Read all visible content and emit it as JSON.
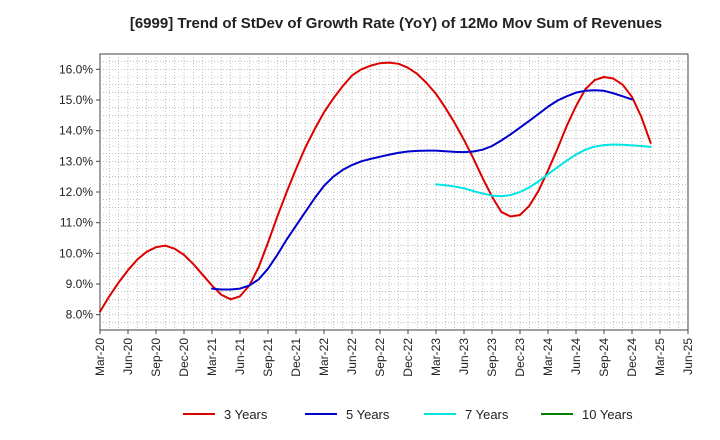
{
  "chart_data": {
    "type": "line",
    "title": "[6999]  Trend of StDev of Growth Rate (YoY) of 12Mo Mov Sum of Revenues",
    "xlabel": "",
    "ylabel": "",
    "ylim": [
      7.5,
      16.5
    ],
    "yticks": [
      8.0,
      9.0,
      10.0,
      11.0,
      12.0,
      13.0,
      14.0,
      15.0,
      16.0
    ],
    "ytick_labels": [
      "8.0%",
      "9.0%",
      "10.0%",
      "11.0%",
      "12.0%",
      "13.0%",
      "14.0%",
      "15.0%",
      "16.0%"
    ],
    "x_tick_labels": [
      "Mar-20",
      "Jun-20",
      "Sep-20",
      "Dec-20",
      "Mar-21",
      "Jun-21",
      "Sep-21",
      "Dec-21",
      "Mar-22",
      "Jun-22",
      "Sep-22",
      "Dec-22",
      "Mar-23",
      "Jun-23",
      "Sep-23",
      "Dec-23",
      "Mar-24",
      "Jun-24",
      "Sep-24",
      "Dec-24",
      "Mar-25",
      "Jun-25"
    ],
    "grid": true,
    "legend_position": "bottom",
    "series": [
      {
        "name": "3 Years",
        "color": "#dd0000",
        "start_index": 0,
        "values": [
          8.1,
          8.6,
          9.05,
          9.45,
          9.8,
          10.05,
          10.2,
          10.25,
          10.15,
          9.95,
          9.65,
          9.3,
          8.95,
          8.65,
          8.5,
          8.6,
          8.95,
          9.55,
          10.35,
          11.2,
          12.0,
          12.75,
          13.45,
          14.05,
          14.6,
          15.05,
          15.45,
          15.8,
          16.0,
          16.12,
          16.2,
          16.22,
          16.18,
          16.05,
          15.85,
          15.55,
          15.2,
          14.75,
          14.25,
          13.7,
          13.1,
          12.45,
          11.85,
          11.35,
          11.2,
          11.25,
          11.55,
          12.05,
          12.7,
          13.4,
          14.15,
          14.8,
          15.35,
          15.65,
          15.75,
          15.7,
          15.5,
          15.1,
          14.45,
          13.6
        ]
      },
      {
        "name": "5 Years",
        "color": "#0000cc",
        "start_index": 12,
        "values": [
          8.85,
          8.82,
          8.82,
          8.85,
          8.95,
          9.15,
          9.5,
          9.95,
          10.45,
          10.9,
          11.35,
          11.8,
          12.2,
          12.5,
          12.72,
          12.88,
          13.0,
          13.08,
          13.15,
          13.22,
          13.28,
          13.32,
          13.34,
          13.35,
          13.35,
          13.33,
          13.31,
          13.3,
          13.32,
          13.38,
          13.5,
          13.68,
          13.88,
          14.1,
          14.32,
          14.55,
          14.78,
          14.98,
          15.12,
          15.24,
          15.3,
          15.32,
          15.3,
          15.22,
          15.12,
          15.02
        ]
      },
      {
        "name": "7 Years",
        "color": "#00e5e5",
        "start_index": 36,
        "values": [
          12.25,
          12.22,
          12.18,
          12.12,
          12.03,
          11.95,
          11.88,
          11.86,
          11.9,
          12.0,
          12.15,
          12.35,
          12.58,
          12.8,
          13.02,
          13.22,
          13.38,
          13.48,
          13.53,
          13.55,
          13.54,
          13.52,
          13.5,
          13.47
        ]
      },
      {
        "name": "10 Years",
        "color": "#008000",
        "start_index": 0,
        "values": []
      }
    ]
  }
}
